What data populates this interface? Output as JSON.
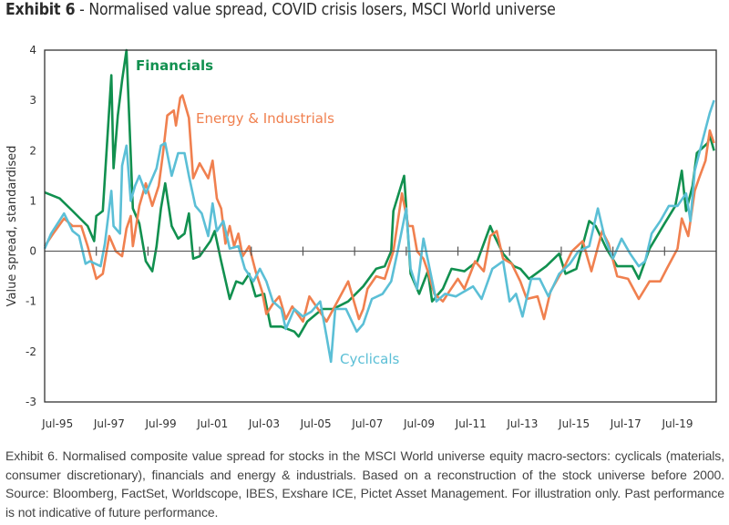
{
  "title": {
    "bold": "Exhibit 6",
    "rest": " - Normalised value spread, COVID crisis losers, MSCI World universe"
  },
  "caption": "Exhibit 6. Normalised composite value spread for stocks in the MSCI World universe equity macro-sectors: cyclicals (materials, consumer discretionary), financials and energy & industrials. Based on a reconstruction of the stock universe before 2000. Source: Bloomberg, FactSet, Worldscope, IBES, Exshare ICE, Pictet Asset Management. For illustration only. Past performance is not indicative of future performance.",
  "chart_data": {
    "type": "line",
    "title": "Normalised value spread, COVID crisis losers, MSCI World universe",
    "ylabel": "Value spread, standardised",
    "xlabel": "",
    "xlim": [
      "1995-01",
      "2020-12"
    ],
    "ylim": [
      -3,
      4
    ],
    "yticks": [
      "4",
      "3",
      "2",
      "1",
      "0",
      "-1",
      "-2",
      "-3"
    ],
    "xticks": [
      "Jul-95",
      "Jul-97",
      "Jul-99",
      "Jul-01",
      "Jul-03",
      "Jul-05",
      "Jul-07",
      "Jul-09",
      "Jul-11",
      "Jul-13",
      "Jul-15",
      "Jul-17",
      "Jul-19"
    ],
    "grid": false,
    "legend": "inline labels",
    "series": [
      {
        "name": "Financials",
        "color": "#11904f",
        "points": [
          [
            "1995-01",
            1.17
          ],
          [
            "1995-08",
            1.05
          ],
          [
            "1996-02",
            0.8
          ],
          [
            "1996-09",
            0.5
          ],
          [
            "1996-12",
            0.2
          ],
          [
            "1997-01",
            0.7
          ],
          [
            "1997-04",
            0.8
          ],
          [
            "1997-08",
            3.5
          ],
          [
            "1997-09",
            1.65
          ],
          [
            "1997-11",
            2.7
          ],
          [
            "1998-01",
            3.4
          ],
          [
            "1998-03",
            4.0
          ],
          [
            "1998-05",
            1.9
          ],
          [
            "1998-06",
            0.85
          ],
          [
            "1998-09",
            0.55
          ],
          [
            "1998-12",
            -0.2
          ],
          [
            "1999-03",
            -0.4
          ],
          [
            "1999-05",
            0.1
          ],
          [
            "1999-07",
            0.85
          ],
          [
            "1999-09",
            1.35
          ],
          [
            "1999-12",
            0.5
          ],
          [
            "2000-03",
            0.25
          ],
          [
            "2000-06",
            0.35
          ],
          [
            "2000-08",
            0.75
          ],
          [
            "2000-10",
            -0.15
          ],
          [
            "2001-01",
            -0.1
          ],
          [
            "2001-06",
            0.2
          ],
          [
            "2001-08",
            0.4
          ],
          [
            "2001-11",
            -0.2
          ],
          [
            "2002-03",
            -0.95
          ],
          [
            "2002-06",
            -0.6
          ],
          [
            "2002-09",
            -0.65
          ],
          [
            "2002-12",
            -0.45
          ],
          [
            "2003-03",
            -0.9
          ],
          [
            "2003-07",
            -0.85
          ],
          [
            "2003-10",
            -1.5
          ],
          [
            "2004-03",
            -1.5
          ],
          [
            "2004-09",
            -1.6
          ],
          [
            "2004-11",
            -1.7
          ],
          [
            "2005-03",
            -1.4
          ],
          [
            "2005-10",
            -1.15
          ],
          [
            "2006-03",
            -1.15
          ],
          [
            "2006-10",
            -1.0
          ],
          [
            "2007-05",
            -0.7
          ],
          [
            "2007-11",
            -0.35
          ],
          [
            "2008-03",
            -0.3
          ],
          [
            "2008-06",
            0.0
          ],
          [
            "2008-07",
            0.8
          ],
          [
            "2008-12",
            1.5
          ],
          [
            "2009-03",
            -0.45
          ],
          [
            "2009-07",
            -0.85
          ],
          [
            "2009-11",
            -0.4
          ],
          [
            "2010-01",
            -1.0
          ],
          [
            "2010-06",
            -0.75
          ],
          [
            "2010-10",
            -0.35
          ],
          [
            "2011-04",
            -0.4
          ],
          [
            "2011-10",
            -0.2
          ],
          [
            "2012-04",
            0.5
          ],
          [
            "2012-06",
            0.3
          ],
          [
            "2012-10",
            -0.05
          ],
          [
            "2013-03",
            -0.3
          ],
          [
            "2013-06",
            -0.35
          ],
          [
            "2013-10",
            -0.55
          ],
          [
            "2014-06",
            -0.3
          ],
          [
            "2014-12",
            -0.05
          ],
          [
            "2015-03",
            -0.45
          ],
          [
            "2015-08",
            -0.35
          ],
          [
            "2016-02",
            0.6
          ],
          [
            "2016-05",
            0.5
          ],
          [
            "2016-10",
            0.05
          ],
          [
            "2017-03",
            -0.3
          ],
          [
            "2017-10",
            -0.3
          ],
          [
            "2018-01",
            -0.55
          ],
          [
            "2018-06",
            0.05
          ],
          [
            "2019-01",
            0.55
          ],
          [
            "2019-06",
            0.9
          ],
          [
            "2019-09",
            1.6
          ],
          [
            "2019-11",
            0.8
          ],
          [
            "2020-02",
            1.3
          ],
          [
            "2020-04",
            1.95
          ],
          [
            "2020-09",
            2.15
          ],
          [
            "2020-10",
            2.3
          ],
          [
            "2020-12",
            2.0
          ]
        ]
      },
      {
        "name": "Energy & Industrials",
        "color": "#f0804f",
        "points": [
          [
            "1995-01",
            0.1
          ],
          [
            "1995-05",
            0.35
          ],
          [
            "1995-10",
            0.65
          ],
          [
            "1996-02",
            0.5
          ],
          [
            "1996-06",
            0.5
          ],
          [
            "1996-09",
            0.1
          ],
          [
            "1997-01",
            -0.55
          ],
          [
            "1997-04",
            -0.45
          ],
          [
            "1997-07",
            0.3
          ],
          [
            "1997-10",
            0.0
          ],
          [
            "1998-01",
            -0.1
          ],
          [
            "1998-03",
            0.45
          ],
          [
            "1998-05",
            0.7
          ],
          [
            "1998-06",
            0.1
          ],
          [
            "1998-09",
            0.9
          ],
          [
            "1998-12",
            1.35
          ],
          [
            "1999-03",
            0.9
          ],
          [
            "1999-06",
            1.3
          ],
          [
            "1999-08",
            1.95
          ],
          [
            "1999-10",
            2.7
          ],
          [
            "2000-01",
            2.8
          ],
          [
            "2000-02",
            2.5
          ],
          [
            "2000-04",
            3.05
          ],
          [
            "2000-05",
            3.1
          ],
          [
            "2000-08",
            2.65
          ],
          [
            "2000-10",
            1.45
          ],
          [
            "2001-01",
            1.75
          ],
          [
            "2001-05",
            1.45
          ],
          [
            "2001-07",
            1.8
          ],
          [
            "2001-09",
            1.05
          ],
          [
            "2001-11",
            0.85
          ],
          [
            "2002-01",
            0.15
          ],
          [
            "2002-03",
            0.5
          ],
          [
            "2002-05",
            0.1
          ],
          [
            "2002-07",
            0.35
          ],
          [
            "2002-09",
            -0.1
          ],
          [
            "2002-12",
            0.1
          ],
          [
            "2003-03",
            -0.4
          ],
          [
            "2003-06",
            -0.8
          ],
          [
            "2003-08",
            -1.25
          ],
          [
            "2003-11",
            -1.05
          ],
          [
            "2004-02",
            -0.9
          ],
          [
            "2004-05",
            -1.35
          ],
          [
            "2004-08",
            -1.1
          ],
          [
            "2005-01",
            -1.4
          ],
          [
            "2005-04",
            -0.9
          ],
          [
            "2005-08",
            -1.15
          ],
          [
            "2005-12",
            -1.4
          ],
          [
            "2006-05",
            -1.0
          ],
          [
            "2006-10",
            -0.6
          ],
          [
            "2007-03",
            -1.35
          ],
          [
            "2007-05",
            -1.15
          ],
          [
            "2007-07",
            -0.75
          ],
          [
            "2007-11",
            -0.5
          ],
          [
            "2008-03",
            -0.55
          ],
          [
            "2008-07",
            0.0
          ],
          [
            "2008-11",
            1.15
          ],
          [
            "2009-02",
            0.5
          ],
          [
            "2009-04",
            0.5
          ],
          [
            "2009-06",
            0.0
          ],
          [
            "2009-09",
            -0.15
          ],
          [
            "2009-11",
            -0.4
          ],
          [
            "2010-02",
            -0.85
          ],
          [
            "2010-06",
            -1.0
          ],
          [
            "2010-09",
            -0.8
          ],
          [
            "2011-01",
            -0.55
          ],
          [
            "2011-04",
            -0.75
          ],
          [
            "2011-09",
            -0.2
          ],
          [
            "2012-01",
            -0.4
          ],
          [
            "2012-04",
            0.3
          ],
          [
            "2012-07",
            0.4
          ],
          [
            "2012-10",
            -0.15
          ],
          [
            "2013-02",
            -0.25
          ],
          [
            "2013-06",
            -0.6
          ],
          [
            "2013-09",
            -0.95
          ],
          [
            "2014-02",
            -0.9
          ],
          [
            "2014-05",
            -1.35
          ],
          [
            "2014-08",
            -0.8
          ],
          [
            "2015-02",
            -0.35
          ],
          [
            "2015-06",
            0.0
          ],
          [
            "2015-11",
            0.2
          ],
          [
            "2016-03",
            -0.4
          ],
          [
            "2016-08",
            0.4
          ],
          [
            "2016-11",
            0.15
          ],
          [
            "2017-03",
            -0.5
          ],
          [
            "2017-08",
            -0.55
          ],
          [
            "2018-01",
            -0.95
          ],
          [
            "2018-06",
            -0.6
          ],
          [
            "2018-11",
            -0.6
          ],
          [
            "2019-02",
            -0.35
          ],
          [
            "2019-07",
            0.05
          ],
          [
            "2019-09",
            0.65
          ],
          [
            "2019-12",
            0.3
          ],
          [
            "2020-03",
            1.2
          ],
          [
            "2020-05",
            1.45
          ],
          [
            "2020-08",
            1.8
          ],
          [
            "2020-10",
            2.4
          ],
          [
            "2020-12",
            2.15
          ]
        ]
      },
      {
        "name": "Cyclicals",
        "color": "#5bbfd6",
        "points": [
          [
            "1995-01",
            0.05
          ],
          [
            "1995-04",
            0.35
          ],
          [
            "1995-10",
            0.75
          ],
          [
            "1996-02",
            0.4
          ],
          [
            "1996-05",
            0.3
          ],
          [
            "1996-08",
            -0.25
          ],
          [
            "1996-10",
            -0.2
          ],
          [
            "1997-03",
            -0.3
          ],
          [
            "1997-05",
            0.15
          ],
          [
            "1997-08",
            1.2
          ],
          [
            "1997-09",
            0.5
          ],
          [
            "1997-12",
            0.35
          ],
          [
            "1998-01",
            1.7
          ],
          [
            "1998-03",
            2.1
          ],
          [
            "1998-05",
            1.0
          ],
          [
            "1998-07",
            1.3
          ],
          [
            "1998-09",
            1.5
          ],
          [
            "1998-12",
            1.15
          ],
          [
            "1999-03",
            1.45
          ],
          [
            "1999-05",
            1.65
          ],
          [
            "1999-07",
            2.1
          ],
          [
            "1999-09",
            2.15
          ],
          [
            "1999-12",
            1.5
          ],
          [
            "2000-03",
            1.95
          ],
          [
            "2000-06",
            1.95
          ],
          [
            "2000-08",
            1.5
          ],
          [
            "2000-11",
            0.9
          ],
          [
            "2001-02",
            0.75
          ],
          [
            "2001-05",
            0.3
          ],
          [
            "2001-07",
            0.95
          ],
          [
            "2001-09",
            0.4
          ],
          [
            "2001-12",
            0.6
          ],
          [
            "2002-03",
            0.05
          ],
          [
            "2002-07",
            0.1
          ],
          [
            "2002-10",
            -0.35
          ],
          [
            "2003-02",
            -0.6
          ],
          [
            "2003-05",
            -0.35
          ],
          [
            "2003-08",
            -0.6
          ],
          [
            "2003-11",
            -1.0
          ],
          [
            "2004-03",
            -1.15
          ],
          [
            "2004-05",
            -1.55
          ],
          [
            "2004-09",
            -1.15
          ],
          [
            "2005-01",
            -1.3
          ],
          [
            "2005-05",
            -1.2
          ],
          [
            "2005-09",
            -1.0
          ],
          [
            "2005-12",
            -1.7
          ],
          [
            "2006-02",
            -2.2
          ],
          [
            "2006-04",
            -1.15
          ],
          [
            "2006-09",
            -1.15
          ],
          [
            "2007-02",
            -1.6
          ],
          [
            "2007-05",
            -1.45
          ],
          [
            "2007-09",
            -0.95
          ],
          [
            "2008-02",
            -0.85
          ],
          [
            "2008-06",
            -0.6
          ],
          [
            "2008-09",
            0.0
          ],
          [
            "2009-01",
            0.85
          ],
          [
            "2009-03",
            -0.35
          ],
          [
            "2009-06",
            -0.75
          ],
          [
            "2009-09",
            0.25
          ],
          [
            "2010-03",
            -1.0
          ],
          [
            "2010-07",
            -0.85
          ],
          [
            "2010-12",
            -0.9
          ],
          [
            "2011-04",
            -0.8
          ],
          [
            "2011-08",
            -0.7
          ],
          [
            "2011-12",
            -0.95
          ],
          [
            "2012-05",
            -0.35
          ],
          [
            "2012-10",
            -0.2
          ],
          [
            "2013-01",
            -1.0
          ],
          [
            "2013-04",
            -0.85
          ],
          [
            "2013-07",
            -1.3
          ],
          [
            "2013-11",
            -0.55
          ],
          [
            "2014-03",
            -0.55
          ],
          [
            "2014-07",
            -0.9
          ],
          [
            "2014-12",
            -0.45
          ],
          [
            "2015-05",
            -0.25
          ],
          [
            "2015-09",
            0.0
          ],
          [
            "2016-02",
            0.1
          ],
          [
            "2016-06",
            0.85
          ],
          [
            "2016-09",
            0.3
          ],
          [
            "2017-01",
            -0.15
          ],
          [
            "2017-05",
            0.25
          ],
          [
            "2017-09",
            -0.05
          ],
          [
            "2018-01",
            -0.3
          ],
          [
            "2018-04",
            -0.2
          ],
          [
            "2018-07",
            0.35
          ],
          [
            "2018-11",
            0.6
          ],
          [
            "2019-03",
            0.9
          ],
          [
            "2019-07",
            0.9
          ],
          [
            "2019-11",
            1.15
          ],
          [
            "2020-01",
            0.6
          ],
          [
            "2020-03",
            1.6
          ],
          [
            "2020-06",
            2.1
          ],
          [
            "2020-10",
            2.75
          ],
          [
            "2020-12",
            3.0
          ]
        ]
      }
    ]
  }
}
